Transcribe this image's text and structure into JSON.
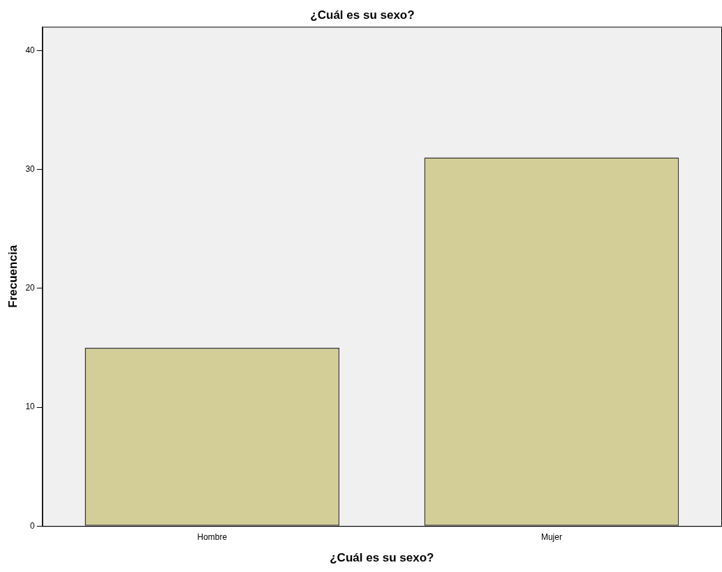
{
  "chart_data": {
    "type": "bar",
    "title": "¿Cuál es su sexo?",
    "xlabel": "¿Cuál es su sexo?",
    "ylabel": "Frecuencia",
    "categories": [
      "Hombre",
      "Mujer"
    ],
    "values": [
      15,
      31
    ],
    "color": "#d3ce98",
    "ylim": [
      0,
      42
    ],
    "yticks": [
      0,
      10,
      20,
      30,
      40
    ],
    "grid": false,
    "legend": false
  }
}
